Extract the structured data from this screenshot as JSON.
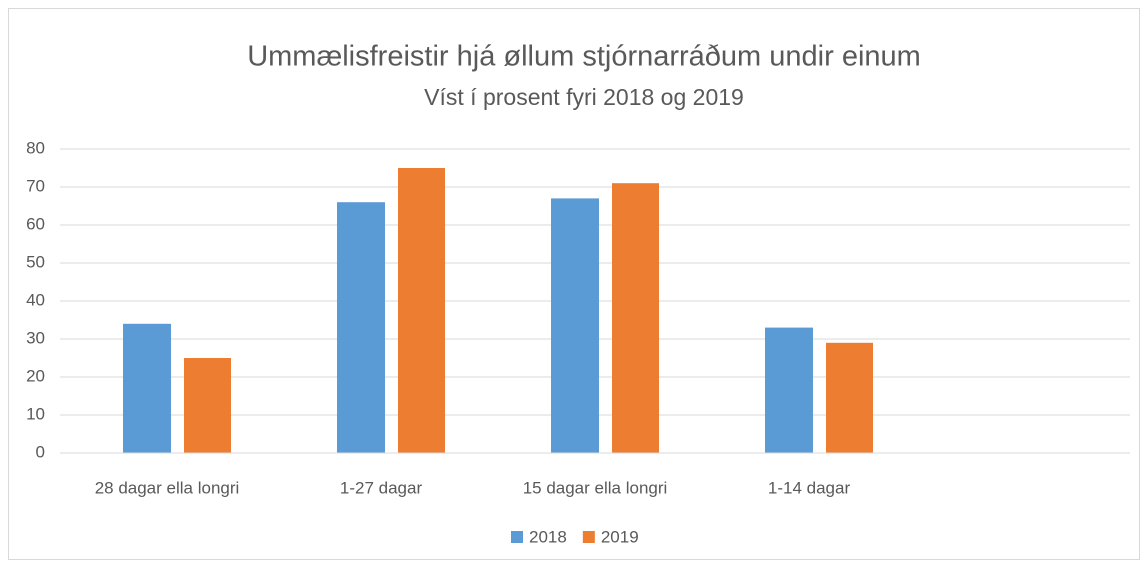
{
  "chart_data": {
    "type": "bar",
    "title": "Ummælisfreistir hjá øllum stjórnarráðum undir einum",
    "subtitle": "Víst í prosent fyri 2018 og 2019",
    "categories": [
      "28 dagar ella longri",
      "1-27 dagar",
      "15 dagar ella longri",
      "1-14 dagar",
      null
    ],
    "series": [
      {
        "name": "2018",
        "color": "#5b9bd5",
        "values": [
          34,
          66,
          67,
          33,
          null
        ]
      },
      {
        "name": "2019",
        "color": "#ed7d31",
        "values": [
          25,
          75,
          71,
          29,
          null
        ]
      }
    ],
    "ylim": [
      0,
      80
    ],
    "yticks": [
      0,
      10,
      20,
      30,
      40,
      50,
      60,
      70,
      80
    ],
    "grid": true,
    "legend": "bottom"
  }
}
